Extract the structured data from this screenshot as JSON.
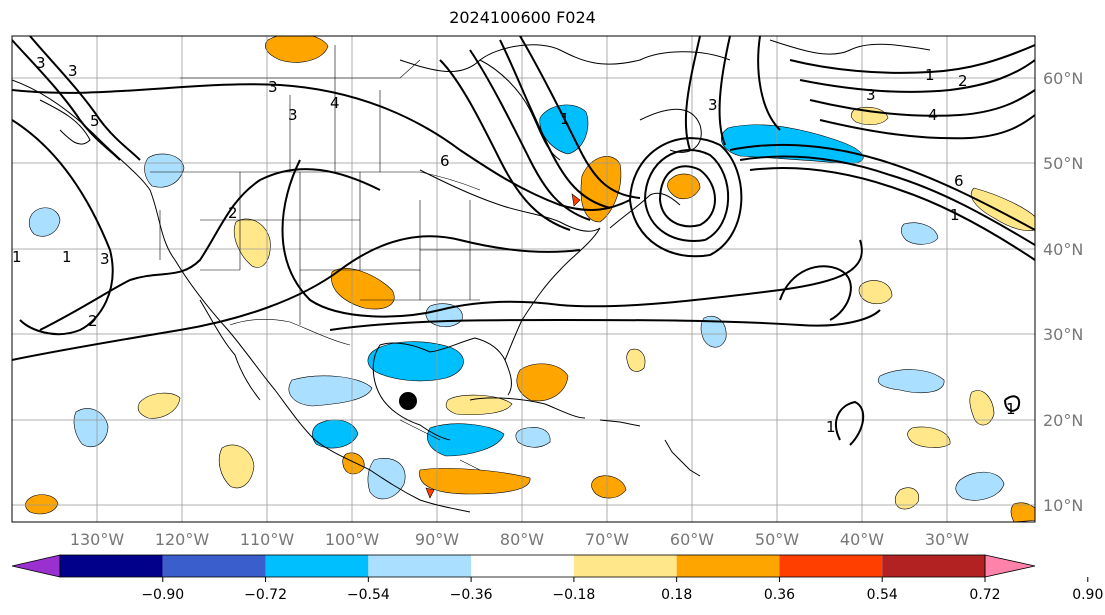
{
  "title": "2024100600 F024",
  "lat_labels": [
    "60°N",
    "50°N",
    "40°N",
    "30°N",
    "20°N",
    "10°N"
  ],
  "lon_labels": [
    "130°W",
    "120°W",
    "110°W",
    "100°W",
    "90°W",
    "80°W",
    "70°W",
    "60°W",
    "50°W",
    "40°W",
    "30°W"
  ],
  "colorbar": {
    "ticks": [
      "−0.90",
      "−0.72",
      "−0.54",
      "−0.36",
      "−0.18",
      "0.18",
      "0.36",
      "0.54",
      "0.72",
      "0.90"
    ],
    "colors": [
      "#9b30d0",
      "#00008b",
      "#3a5fcd",
      "#00bfff",
      "#aadfff",
      "#ffffff",
      "#ffe78a",
      "#ffa500",
      "#ff3f00",
      "#b22222",
      "#ff82ab"
    ]
  },
  "contour_labels": [
    "1",
    "2",
    "3",
    "4",
    "5",
    "6"
  ],
  "marker": "storm-center"
}
